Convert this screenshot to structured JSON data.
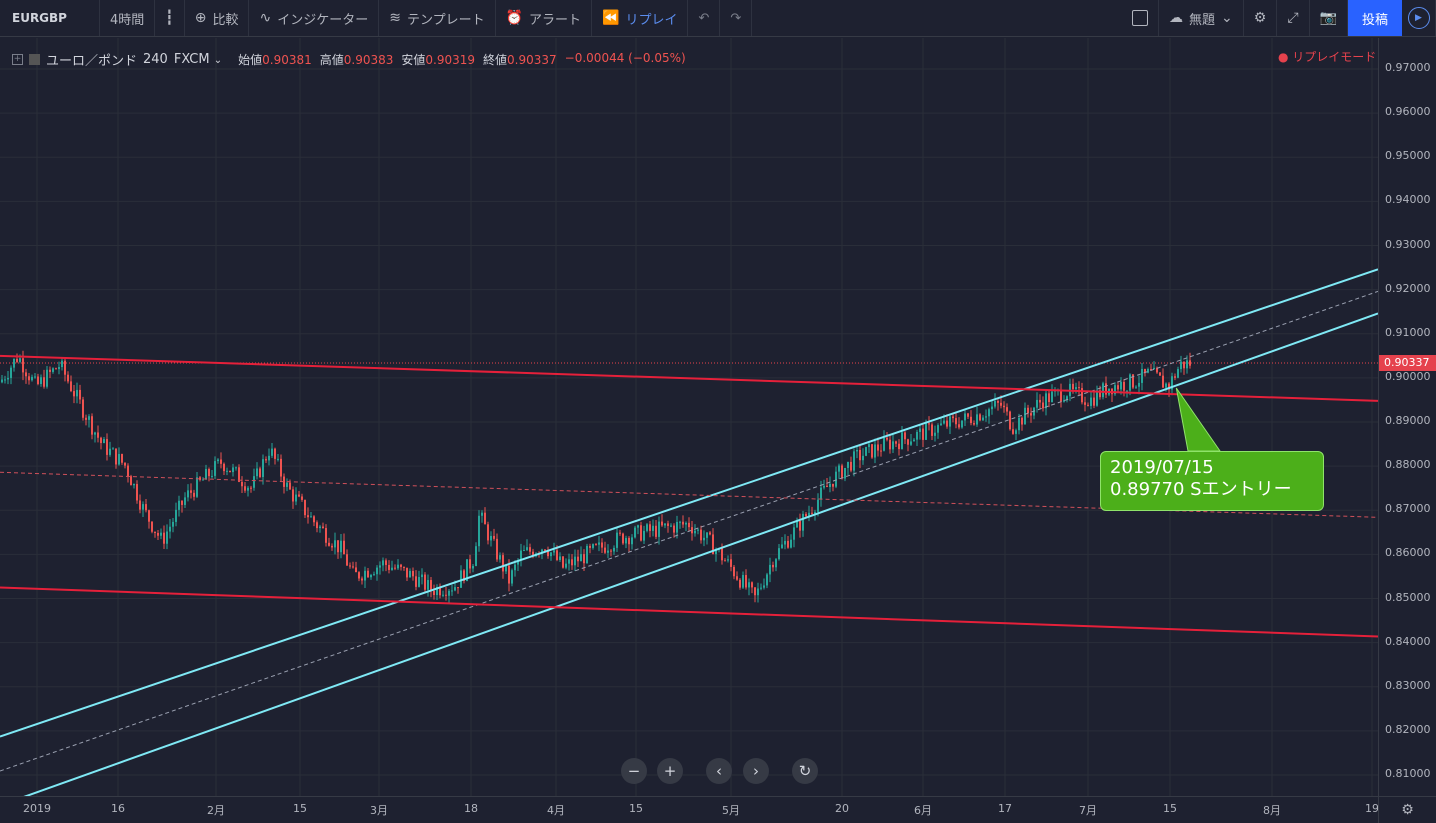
{
  "toolbar": {
    "symbol": "EURGBP",
    "interval": "4時間",
    "compare": "比較",
    "indicators": "インジケーター",
    "templates": "テンプレート",
    "alert": "アラート",
    "replay": "リプレイ",
    "layout_name": "無題",
    "post": "投稿"
  },
  "legend": {
    "title": "ユーロ／ポンド",
    "interval": "240",
    "source": "FXCM",
    "open_label": "始値",
    "open": "0.90381",
    "high_label": "高値",
    "high": "0.90383",
    "low_label": "安値",
    "low": "0.90319",
    "close_label": "終値",
    "close": "0.90337",
    "change": "−0.00044 (−0.05%)",
    "replay_mode": "● リプレイモード"
  },
  "price_axis": {
    "labels": [
      "0.97000",
      "0.96000",
      "0.95000",
      "0.94000",
      "0.93000",
      "0.92000",
      "0.91000",
      "0.90000",
      "0.89000",
      "0.88000",
      "0.87000",
      "0.86000",
      "0.85000",
      "0.84000",
      "0.83000",
      "0.82000",
      "0.81000"
    ],
    "current": "0.90337"
  },
  "time_axis": {
    "labels": [
      "2019",
      "16",
      "2月",
      "15",
      "3月",
      "18",
      "4月",
      "15",
      "5月",
      "20",
      "6月",
      "17",
      "7月",
      "15",
      "8月",
      "19"
    ]
  },
  "annotation": {
    "line1": "2019/07/15",
    "line2": "0.89770 Sエントリー"
  },
  "colors": {
    "background": "#1e2130",
    "channel": "#7fe9f5",
    "resistance": "#e5203a",
    "callout": "#4caf1a",
    "up_candle": "#26a69a",
    "down_candle": "#ef5350"
  },
  "chart_data": {
    "type": "candlestick",
    "symbol": "EURGBP",
    "interval": "240",
    "ylim": [
      0.805,
      0.975
    ],
    "x_range": [
      "2019-01-01",
      "2019-08-19"
    ],
    "path_points": [
      {
        "date": "2019-01-01",
        "price": 0.899
      },
      {
        "date": "2019-01-04",
        "price": 0.905
      },
      {
        "date": "2019-01-07",
        "price": 0.898
      },
      {
        "date": "2019-01-11",
        "price": 0.903
      },
      {
        "date": "2019-01-14",
        "price": 0.895
      },
      {
        "date": "2019-01-18",
        "price": 0.885
      },
      {
        "date": "2019-01-22",
        "price": 0.88
      },
      {
        "date": "2019-01-25",
        "price": 0.87
      },
      {
        "date": "2019-01-28",
        "price": 0.863
      },
      {
        "date": "2019-02-01",
        "price": 0.873
      },
      {
        "date": "2019-02-07",
        "price": 0.881
      },
      {
        "date": "2019-02-12",
        "price": 0.875
      },
      {
        "date": "2019-02-15",
        "price": 0.884
      },
      {
        "date": "2019-02-18",
        "price": 0.875
      },
      {
        "date": "2019-02-22",
        "price": 0.868
      },
      {
        "date": "2019-02-27",
        "price": 0.861
      },
      {
        "date": "2019-03-01",
        "price": 0.855
      },
      {
        "date": "2019-03-06",
        "price": 0.858
      },
      {
        "date": "2019-03-11",
        "price": 0.855
      },
      {
        "date": "2019-03-14",
        "price": 0.852
      },
      {
        "date": "2019-03-18",
        "price": 0.853
      },
      {
        "date": "2019-03-21",
        "price": 0.859
      },
      {
        "date": "2019-03-22",
        "price": 0.869
      },
      {
        "date": "2019-03-27",
        "price": 0.854
      },
      {
        "date": "2019-03-29",
        "price": 0.86
      },
      {
        "date": "2019-04-02",
        "price": 0.862
      },
      {
        "date": "2019-04-05",
        "price": 0.857
      },
      {
        "date": "2019-04-09",
        "price": 0.86
      },
      {
        "date": "2019-04-15",
        "price": 0.864
      },
      {
        "date": "2019-04-22",
        "price": 0.866
      },
      {
        "date": "2019-04-26",
        "price": 0.867
      },
      {
        "date": "2019-04-30",
        "price": 0.862
      },
      {
        "date": "2019-05-03",
        "price": 0.857
      },
      {
        "date": "2019-05-07",
        "price": 0.85
      },
      {
        "date": "2019-05-10",
        "price": 0.859
      },
      {
        "date": "2019-05-14",
        "price": 0.866
      },
      {
        "date": "2019-05-20",
        "price": 0.877
      },
      {
        "date": "2019-05-24",
        "price": 0.882
      },
      {
        "date": "2019-05-29",
        "price": 0.885
      },
      {
        "date": "2019-06-03",
        "price": 0.887
      },
      {
        "date": "2019-06-07",
        "price": 0.889
      },
      {
        "date": "2019-06-12",
        "price": 0.891
      },
      {
        "date": "2019-06-17",
        "price": 0.894
      },
      {
        "date": "2019-06-19",
        "price": 0.889
      },
      {
        "date": "2019-06-24",
        "price": 0.895
      },
      {
        "date": "2019-06-28",
        "price": 0.897
      },
      {
        "date": "2019-07-02",
        "price": 0.895
      },
      {
        "date": "2019-07-05",
        "price": 0.898
      },
      {
        "date": "2019-07-09",
        "price": 0.899
      },
      {
        "date": "2019-07-12",
        "price": 0.901
      },
      {
        "date": "2019-07-15",
        "price": 0.898
      },
      {
        "date": "2019-07-17",
        "price": 0.903
      },
      {
        "date": "2019-07-19",
        "price": 0.9034
      }
    ],
    "drawings": [
      {
        "name": "channel-upper",
        "from": {
          "date": "2019-01-01",
          "price": 0.8187
        },
        "to": {
          "date": "2019-08-19",
          "price": 0.9246
        }
      },
      {
        "name": "channel-mid",
        "from": {
          "date": "2019-01-01",
          "price": 0.8109
        },
        "to": {
          "date": "2019-08-19",
          "price": 0.9196
        }
      },
      {
        "name": "channel-lower",
        "from": {
          "date": "2019-01-01",
          "price": 0.8031
        },
        "to": {
          "date": "2019-08-19",
          "price": 0.9146
        }
      },
      {
        "name": "resistance-upper",
        "from": {
          "date": "2019-01-01",
          "price": 0.905
        },
        "to": {
          "date": "2019-08-19",
          "price": 0.8948
        }
      },
      {
        "name": "resistance-mid",
        "from": {
          "date": "2019-01-01",
          "price": 0.8786
        },
        "to": {
          "date": "2019-08-19",
          "price": 0.8684
        }
      },
      {
        "name": "resistance-lower",
        "from": {
          "date": "2019-01-01",
          "price": 0.8525
        },
        "to": {
          "date": "2019-08-19",
          "price": 0.8414
        }
      }
    ]
  }
}
